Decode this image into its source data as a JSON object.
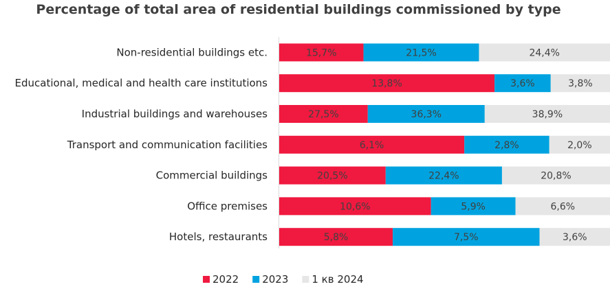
{
  "chart_data": {
    "type": "bar",
    "orientation": "horizontal",
    "stacked": "100%",
    "title": "Percentage of total area of residential buildings commissioned by type",
    "categories": [
      "Non-residential buildings etc.",
      "Educational, medical and health care institutions",
      "Industrial buildings and warehouses",
      "Transport and communication facilities",
      "Commercial buildings",
      "Office premises",
      "Hotels, restaurants"
    ],
    "series": [
      {
        "name": "2022",
        "color": "#f0193f",
        "values": [
          15.7,
          13.8,
          27.5,
          6.1,
          20.5,
          10.6,
          5.8
        ],
        "labels": [
          "15,7%",
          "13,8%",
          "27,5%",
          "6,1%",
          "20,5%",
          "10,6%",
          "5,8%"
        ]
      },
      {
        "name": "2023",
        "color": "#00a3df",
        "values": [
          21.5,
          3.6,
          36.3,
          2.8,
          22.4,
          5.9,
          7.5
        ],
        "labels": [
          "21,5%",
          "3,6%",
          "36,3%",
          "2,8%",
          "22,4%",
          "5,9%",
          "7,5%"
        ]
      },
      {
        "name": "1 кв 2024",
        "color": "#e6e6e6",
        "values": [
          24.4,
          3.8,
          38.9,
          2.0,
          20.8,
          6.6,
          3.6
        ],
        "labels": [
          "24,4%",
          "3,8%",
          "38,9%",
          "2,0%",
          "20,8%",
          "6,6%",
          "3,6%"
        ]
      }
    ],
    "legend_position": "bottom",
    "grid": false
  }
}
